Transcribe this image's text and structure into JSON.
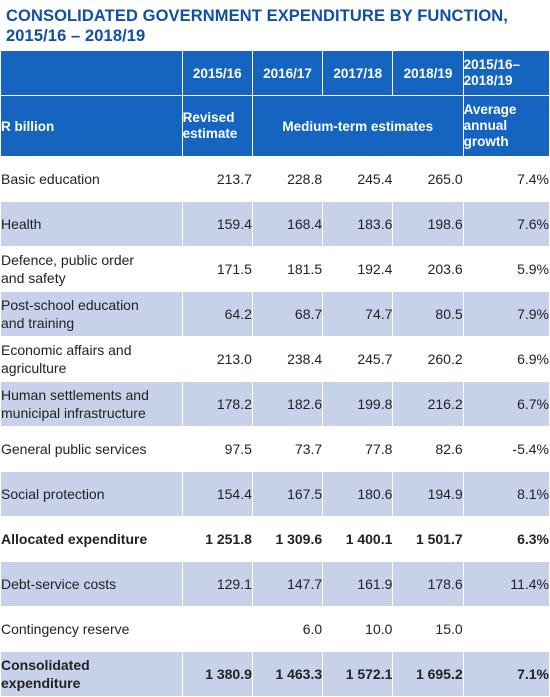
{
  "title": {
    "line1": "CONSOLIDATED GOVERNMENT EXPENDITURE BY FUNCTION,",
    "line2": "2015/16 – 2018/19"
  },
  "header": {
    "years": [
      "2015/16",
      "2016/17",
      "2017/18",
      "2018/19"
    ],
    "growth_period_line1": "2015/16–",
    "growth_period_line2": "2018/19",
    "unit_label": "R billion",
    "revised_line1": "Revised",
    "revised_line2": "estimate",
    "medium_term": "Medium-term estimates",
    "growth_label_line1": "Average",
    "growth_label_line2": "annual",
    "growth_label_line3": "growth"
  },
  "rows": [
    {
      "label1": "Basic education",
      "label2": "",
      "values": [
        "213.7",
        "228.8",
        "245.4",
        "265.0"
      ],
      "growth": "7.4%",
      "bold": false
    },
    {
      "label1": "Health",
      "label2": "",
      "values": [
        "159.4",
        "168.4",
        "183.6",
        "198.6"
      ],
      "growth": "7.6%",
      "bold": false
    },
    {
      "label1": "Defence, public order",
      "label2": "and safety",
      "values": [
        "171.5",
        "181.5",
        "192.4",
        "203.6"
      ],
      "growth": "5.9%",
      "bold": false
    },
    {
      "label1": "Post-school education",
      "label2": "and training",
      "values": [
        "64.2",
        "68.7",
        "74.7",
        "80.5"
      ],
      "growth": "7.9%",
      "bold": false
    },
    {
      "label1": "Economic affairs and",
      "label2": "agriculture",
      "values": [
        "213.0",
        "238.4",
        "245.7",
        "260.2"
      ],
      "growth": "6.9%",
      "bold": false
    },
    {
      "label1": "Human settlements and",
      "label2": "municipal infrastructure",
      "values": [
        "178.2",
        "182.6",
        "199.8",
        "216.2"
      ],
      "growth": "6.7%",
      "bold": false
    },
    {
      "label1": "General public services",
      "label2": "",
      "values": [
        "97.5",
        "73.7",
        "77.8",
        "82.6"
      ],
      "growth": "-5.4%",
      "bold": false
    },
    {
      "label1": "Social protection",
      "label2": "",
      "values": [
        "154.4",
        "167.5",
        "180.6",
        "194.9"
      ],
      "growth": "8.1%",
      "bold": false
    },
    {
      "label1": "Allocated expenditure",
      "label2": "",
      "values": [
        "1 251.8",
        "1 309.6",
        "1 400.1",
        "1 501.7"
      ],
      "growth": "6.3%",
      "bold": true
    },
    {
      "label1": "Debt-service costs",
      "label2": "",
      "values": [
        "129.1",
        "147.7",
        "161.9",
        "178.6"
      ],
      "growth": "11.4%",
      "bold": false
    },
    {
      "label1": "Contingency reserve",
      "label2": "",
      "values": [
        "",
        "6.0",
        "10.0",
        "15.0"
      ],
      "growth": "",
      "bold": false
    },
    {
      "label1": "Consolidated",
      "label2": "expenditure",
      "values": [
        "1 380.9",
        "1 463.3",
        "1 572.1",
        "1 695.2"
      ],
      "growth": "7.1%",
      "bold": true
    }
  ],
  "colors": {
    "title": "#0f4fa6",
    "header_bg": "#1565c0",
    "band": "#c8d1ea"
  }
}
